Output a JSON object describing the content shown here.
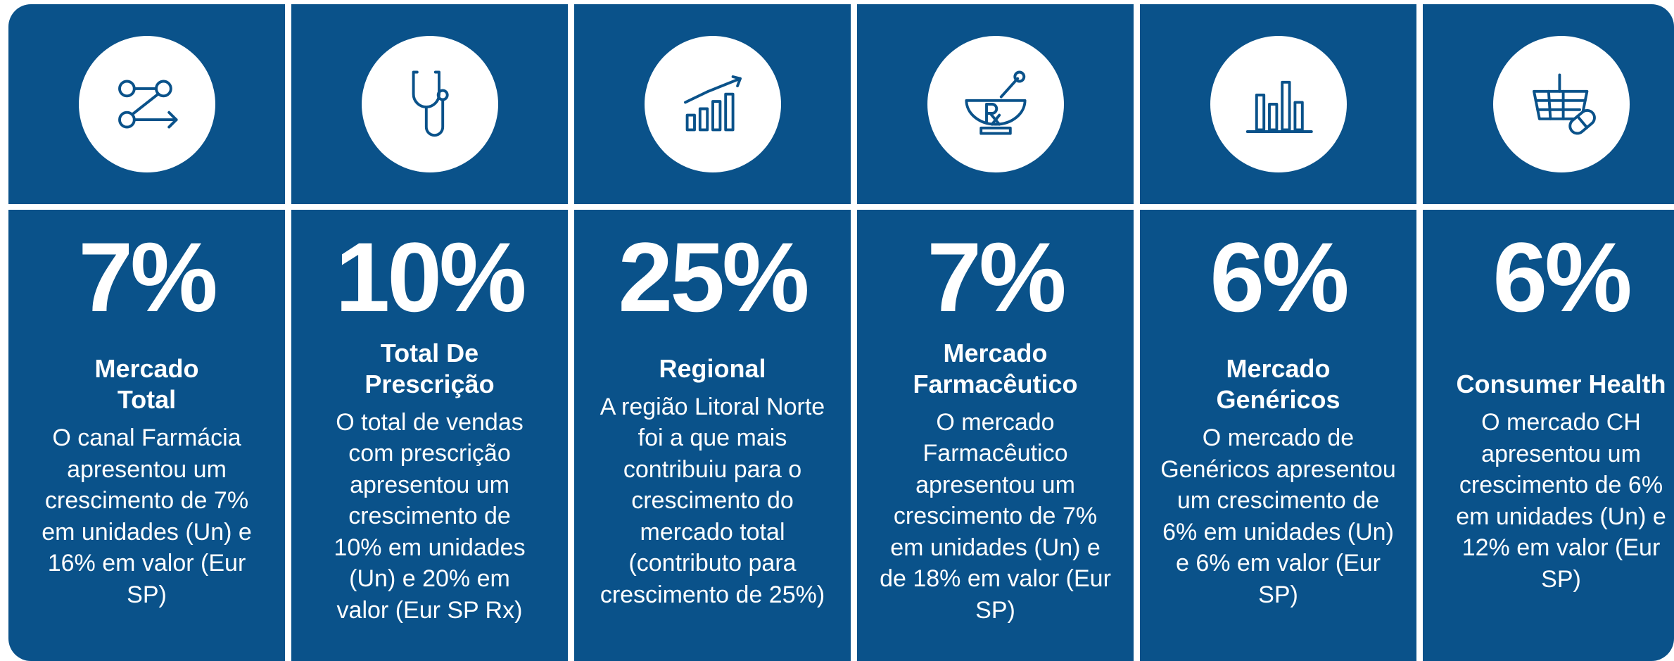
{
  "cards": [
    {
      "value": "7%",
      "title": "Mercado\nTotal",
      "text": "O canal Farmácia\napresentou um\ncrescimento de 7%\nem unidades (Un) e\n16% em valor (Eur\nSP)"
    },
    {
      "value": "10%",
      "title": "Total De\nPrescrição",
      "text": "O total de vendas\ncom prescrição\napresentou um\ncrescimento de\n10% em unidades\n(Un) e 20% em\nvalor (Eur SP Rx)"
    },
    {
      "value": "25%",
      "title": "Regional",
      "text": "A região Litoral Norte\nfoi a que mais\ncontribuiu para o\ncrescimento do\nmercado total\n(contributo para\ncrescimento de 25%)"
    },
    {
      "value": "7%",
      "title": "Mercado\nFarmacêutico",
      "text": "O mercado\nFarmacêutico\napresentou um\ncrescimento de 7%\nem unidades (Un) e\nde 18% em valor (Eur\nSP)"
    },
    {
      "value": "6%",
      "title": "Mercado\nGenéricos",
      "text": "O mercado de\nGenéricos apresentou\num crescimento de\n6% em unidades (Un)\ne 6% em valor (Eur\nSP)"
    },
    {
      "value": "6%",
      "title": "Consumer Health",
      "text": "O mercado CH\napresentou um\ncrescimento de 6%\nem unidades (Un) e\n12% em valor (Eur\nSP)"
    }
  ]
}
